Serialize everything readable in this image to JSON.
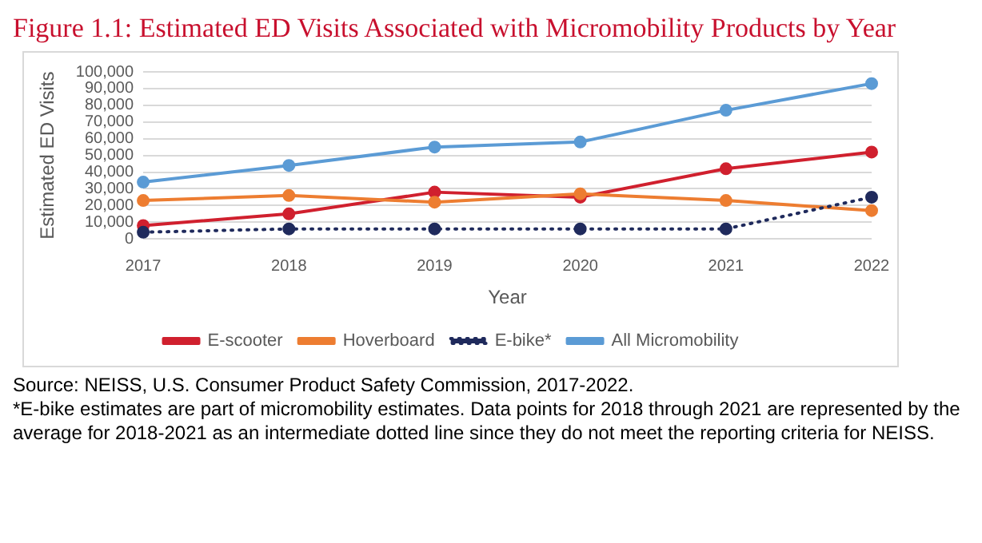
{
  "chart_data": {
    "type": "line",
    "title": "Figure 1.1: Estimated ED Visits Associated with Micromobility Products by Year",
    "categories": [
      "2017",
      "2018",
      "2019",
      "2020",
      "2021",
      "2022"
    ],
    "xlabel": "Year",
    "ylabel": "Estimated ED Visits",
    "series": [
      {
        "name": "E-scooter",
        "color": "#d0202e",
        "values": [
          8000,
          15000,
          28000,
          25000,
          42000,
          52000
        ]
      },
      {
        "name": "Hoverboard",
        "color": "#ed7d31",
        "values": [
          23000,
          26000,
          22000,
          27000,
          23000,
          17000
        ]
      },
      {
        "name": "E-bike*",
        "color": "#1f2a5c",
        "line_style": "dotted",
        "values": [
          4000,
          6000,
          6000,
          6000,
          6000,
          25000
        ]
      },
      {
        "name": "All Micromobility",
        "color": "#5b9bd5",
        "values": [
          34000,
          44000,
          55000,
          58000,
          77000,
          93000
        ]
      }
    ],
    "ylim": [
      0,
      100000
    ],
    "yticks": [
      {
        "value": 0,
        "label": "0"
      },
      {
        "value": 10000,
        "label": "10,000"
      },
      {
        "value": 20000,
        "label": "20,000"
      },
      {
        "value": 30000,
        "label": "30,000"
      },
      {
        "value": 40000,
        "label": "40,000"
      },
      {
        "value": 50000,
        "label": "50,000"
      },
      {
        "value": 60000,
        "label": "60,000"
      },
      {
        "value": 70000,
        "label": "70,000"
      },
      {
        "value": 80000,
        "label": "80,000"
      },
      {
        "value": 90000,
        "label": "90,000"
      },
      {
        "value": 100000,
        "label": "100,000"
      }
    ],
    "grid": "y",
    "legend": "bottom",
    "marker": "circle",
    "line_style": "solid",
    "annotations": [
      "Source: NEISS, U.S. Consumer Product Safety Commission, 2017-2022.",
      "*E-bike estimates are part of micromobility estimates. Data points for 2018 through 2021 are represented by the average for 2018-2021 as an intermediate dotted line since they do not meet the reporting criteria for NEISS."
    ]
  }
}
